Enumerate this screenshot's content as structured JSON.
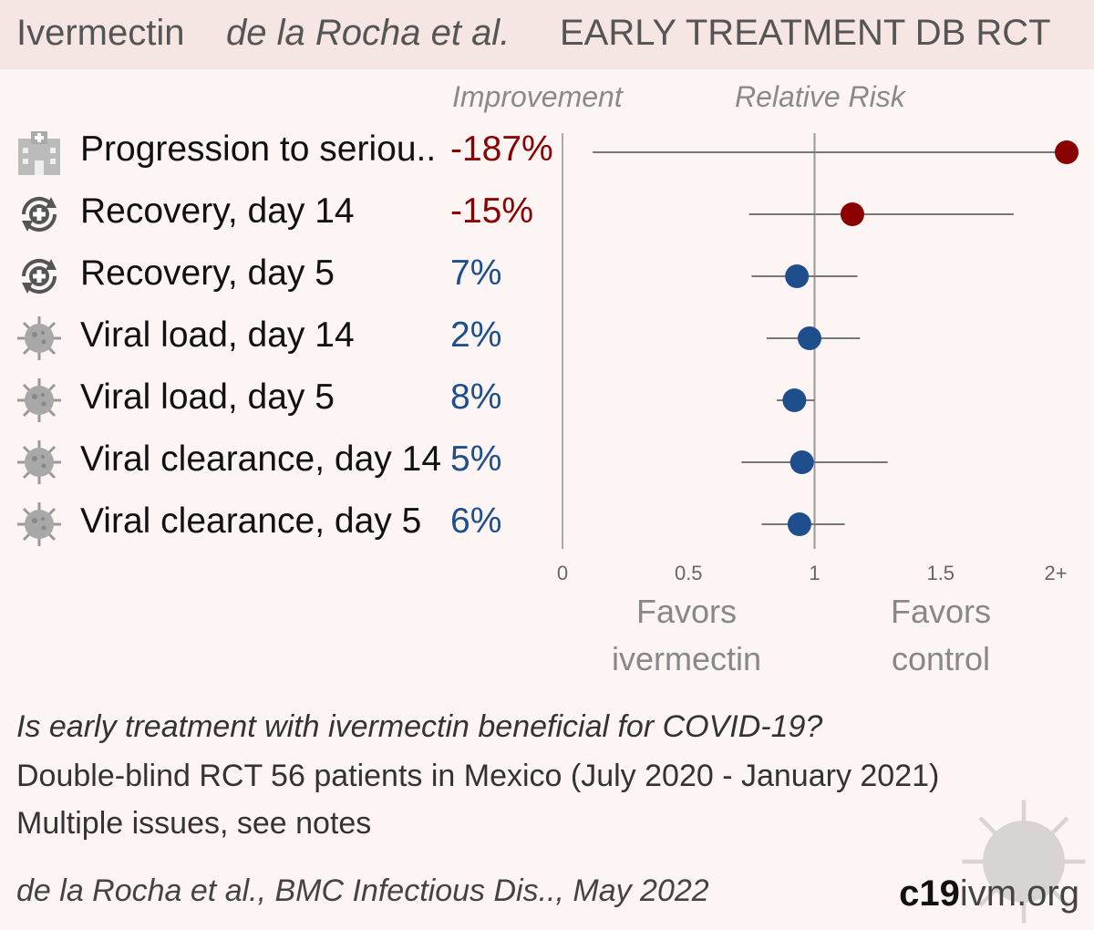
{
  "header": {
    "drug": "Ivermectin",
    "authors": "de la Rocha et al.",
    "type": "EARLY TREATMENT  DB RCT"
  },
  "columns": {
    "improvement": "Improvement",
    "relative_risk": "Relative Risk"
  },
  "rows": [
    {
      "label": "Progression to seriou..",
      "improvement": "-187%",
      "icon": "hospital-icon"
    },
    {
      "label": "Recovery, day 14",
      "improvement": "-15%",
      "icon": "recovery-icon"
    },
    {
      "label": "Recovery, day 5",
      "improvement": "7%",
      "icon": "recovery-icon"
    },
    {
      "label": "Viral load, day 14",
      "improvement": "2%",
      "icon": "virus-icon"
    },
    {
      "label": "Viral load, day 5",
      "improvement": "8%",
      "icon": "virus-icon"
    },
    {
      "label": "Viral clearance, day 14",
      "improvement": "5%",
      "icon": "virus-icon"
    },
    {
      "label": "Viral clearance, day 5",
      "improvement": "6%",
      "icon": "virus-icon"
    }
  ],
  "chart_data": {
    "type": "forest",
    "xlabel": "",
    "xlim": [
      0,
      2
    ],
    "x_ticks": [
      "0",
      "0.5",
      "1",
      "1.5",
      "2+"
    ],
    "reference_line": 1,
    "favors_left": "Favors\nivermectin",
    "favors_right": "Favors\ncontrol",
    "series": [
      {
        "category": "Progression to seriou..",
        "rr": 2.0,
        "ci": [
          0.12,
          2.0
        ],
        "color": "#8b0000"
      },
      {
        "category": "Recovery, day 14",
        "rr": 1.15,
        "ci": [
          0.74,
          1.79
        ],
        "color": "#8b0000"
      },
      {
        "category": "Recovery, day 5",
        "rr": 0.93,
        "ci": [
          0.75,
          1.17
        ],
        "color": "#1f4e8c"
      },
      {
        "category": "Viral load, day 14",
        "rr": 0.98,
        "ci": [
          0.81,
          1.18
        ],
        "color": "#1f4e8c"
      },
      {
        "category": "Viral load, day 5",
        "rr": 0.92,
        "ci": [
          0.85,
          1.0
        ],
        "color": "#1f4e8c"
      },
      {
        "category": "Viral clearance, day 14",
        "rr": 0.95,
        "ci": [
          0.71,
          1.29
        ],
        "color": "#1f4e8c"
      },
      {
        "category": "Viral clearance, day 5",
        "rr": 0.94,
        "ci": [
          0.79,
          1.12
        ],
        "color": "#1f4e8c"
      }
    ]
  },
  "footer": {
    "question": "Is early treatment with ivermectin beneficial for COVID-19?",
    "design": "Double-blind RCT 56 patients in Mexico (July 2020 - January 2021)",
    "notes": "Multiple issues, see notes",
    "citation": "de la Rocha et al., BMC Infectious Dis.., May 2022",
    "brand_bold": "c19",
    "brand_light": "ivm.org"
  },
  "colors": {
    "negative": "#8b0000",
    "positive": "#1f4e8c",
    "background": "#fcf5f4",
    "header": "#f5e6e4"
  }
}
